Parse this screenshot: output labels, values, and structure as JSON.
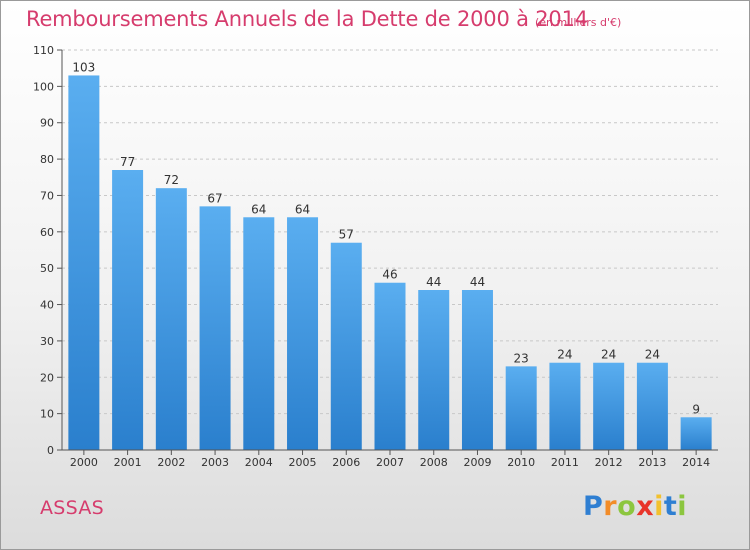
{
  "header": {
    "title": "Remboursements Annuels de la Dette de 2000 à 2014",
    "unit": "(en milliers d'€)"
  },
  "footer": {
    "commune": "ASSAS",
    "brand": {
      "letters": [
        "P",
        "r",
        "o",
        "x",
        "i",
        "t",
        "i"
      ],
      "colors": [
        "#2f7fd2",
        "#f28c28",
        "#8cc63f",
        "#e8342a",
        "#f2c12e",
        "#2f7fd2",
        "#8cc63f"
      ]
    }
  },
  "chart_data": {
    "type": "bar",
    "title": "Remboursements Annuels de la Dette de 2000 à 2014",
    "unit": "(en milliers d'€)",
    "categories": [
      "2000",
      "2001",
      "2002",
      "2003",
      "2004",
      "2005",
      "2006",
      "2007",
      "2008",
      "2009",
      "2010",
      "2011",
      "2012",
      "2013",
      "2014"
    ],
    "values": [
      103,
      77,
      72,
      67,
      64,
      64,
      57,
      46,
      44,
      44,
      23,
      24,
      24,
      24,
      9
    ],
    "ylim": [
      0,
      110
    ],
    "yticks": [
      0,
      10,
      20,
      30,
      40,
      50,
      60,
      70,
      80,
      90,
      100,
      110
    ],
    "grid": true,
    "bar_color_top": "#5aaef0",
    "bar_color_bottom": "#2a7fcd"
  }
}
